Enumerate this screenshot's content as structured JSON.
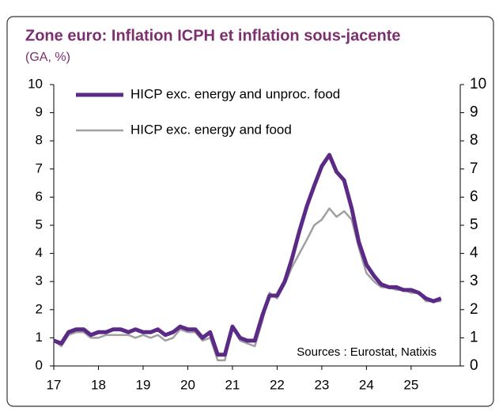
{
  "chart_data": {
    "type": "line",
    "title": "Zone euro: Inflation ICPH et inflation sous-jacente",
    "subtitle": "(GA, %)",
    "annotation": "Sources :  Eurostat, Natixis",
    "x": [
      17,
      17.17,
      17.33,
      17.5,
      17.67,
      17.83,
      18,
      18.17,
      18.33,
      18.5,
      18.67,
      18.83,
      19,
      19.17,
      19.33,
      19.5,
      19.67,
      19.83,
      20,
      20.17,
      20.33,
      20.5,
      20.67,
      20.83,
      21,
      21.17,
      21.33,
      21.5,
      21.67,
      21.83,
      22,
      22.17,
      22.33,
      22.5,
      22.67,
      22.83,
      23,
      23.17,
      23.33,
      23.5,
      23.67,
      23.83,
      24,
      24.17,
      24.33,
      24.5,
      24.67,
      24.83,
      25,
      25.17,
      25.33,
      25.5,
      25.67
    ],
    "series": [
      {
        "name": "HICP exc. energy and unproc. food",
        "color": "#5b2a86",
        "values": [
          0.9,
          0.8,
          1.2,
          1.3,
          1.3,
          1.1,
          1.2,
          1.2,
          1.3,
          1.3,
          1.2,
          1.3,
          1.2,
          1.2,
          1.3,
          1.1,
          1.2,
          1.4,
          1.3,
          1.3,
          1.0,
          1.2,
          0.4,
          0.4,
          1.4,
          1.0,
          0.9,
          0.9,
          1.8,
          2.5,
          2.5,
          3.0,
          3.8,
          4.8,
          5.7,
          6.4,
          7.1,
          7.5,
          6.9,
          6.6,
          5.6,
          4.4,
          3.6,
          3.2,
          2.9,
          2.8,
          2.8,
          2.7,
          2.7,
          2.6,
          2.4,
          2.3,
          2.4
        ]
      },
      {
        "name": "HICP exc. energy and food",
        "color": "#a0a0a0",
        "values": [
          0.9,
          0.7,
          1.1,
          1.2,
          1.2,
          1.0,
          1.0,
          1.1,
          1.1,
          1.1,
          1.1,
          1.0,
          1.1,
          1.0,
          1.1,
          0.9,
          1.0,
          1.3,
          1.2,
          1.2,
          0.9,
          1.0,
          0.2,
          0.2,
          1.4,
          0.9,
          0.8,
          0.7,
          1.6,
          2.6,
          2.4,
          2.9,
          3.5,
          4.0,
          4.5,
          5.0,
          5.2,
          5.6,
          5.3,
          5.5,
          5.2,
          4.2,
          3.3,
          3.0,
          2.8,
          2.8,
          2.7,
          2.7,
          2.6,
          2.6,
          2.3,
          2.3,
          2.3
        ]
      }
    ],
    "xlim": [
      17,
      26.1
    ],
    "xticks": [
      17,
      18,
      19,
      20,
      21,
      22,
      23,
      24,
      25
    ],
    "ylim": [
      0,
      10
    ],
    "yticks": [
      0,
      1,
      2,
      3,
      4,
      5,
      6,
      7,
      8,
      9,
      10
    ],
    "y2lim": [
      0,
      10
    ],
    "y2ticks": [
      0,
      1,
      2,
      3,
      4,
      5,
      6,
      7,
      8,
      9,
      10
    ],
    "legend": "top-left"
  }
}
